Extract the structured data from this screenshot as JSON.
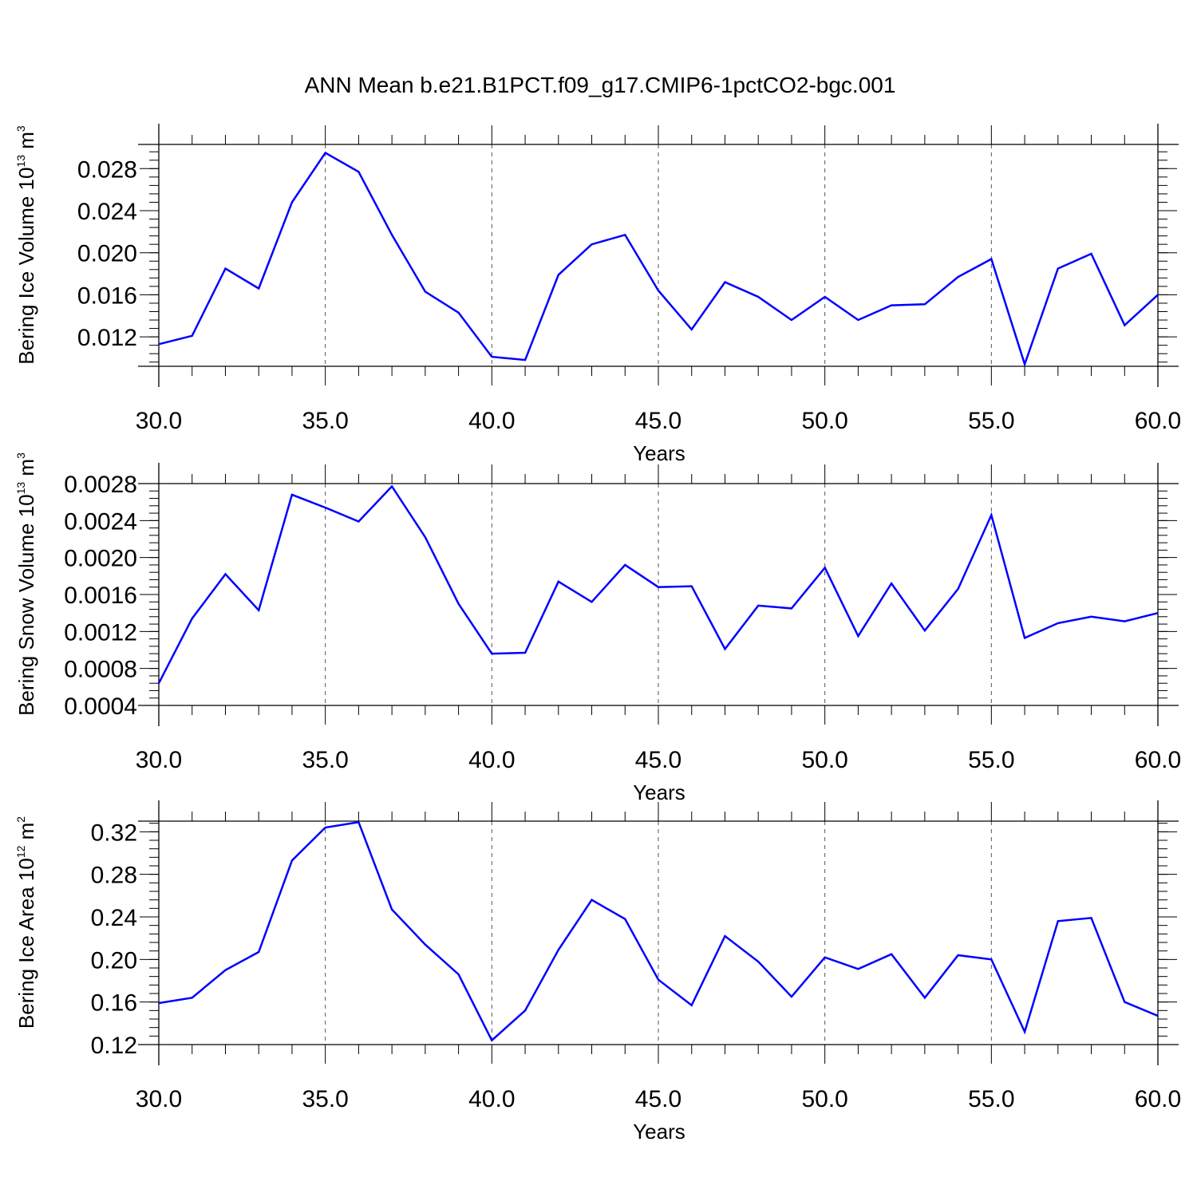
{
  "title": "ANN Mean b.e21.B1PCT.f09_g17.CMIP6-1pctCO2-bgc.001",
  "chart_data": [
    {
      "type": "line",
      "ylabel": "Bering Ice Volume",
      "yunit_base": "10",
      "yunit_exp": "13",
      "yunit_rest": " m",
      "yunit_exp2": "3",
      "xlabel": "Years",
      "xlim": [
        30,
        60
      ],
      "ylim": [
        0.0092,
        0.0303
      ],
      "xticks": [
        30,
        35,
        40,
        45,
        50,
        55,
        60
      ],
      "xtick_labels": [
        "30.0",
        "35.0",
        "40.0",
        "45.0",
        "50.0",
        "55.0",
        "60.0"
      ],
      "yticks": [
        0.012,
        0.016,
        0.02,
        0.024,
        0.028
      ],
      "ytick_labels": [
        "0.012",
        "0.016",
        "0.020",
        "0.024",
        "0.028"
      ],
      "yminor_step": 0.0008,
      "grid": "vertical dashed",
      "line_color": "#0000ff",
      "x": [
        30,
        31,
        32,
        33,
        34,
        35,
        36,
        37,
        38,
        39,
        40,
        41,
        42,
        43,
        44,
        45,
        46,
        47,
        48,
        49,
        50,
        51,
        52,
        53,
        54,
        55,
        56,
        57,
        58,
        59,
        60
      ],
      "values": [
        0.0113,
        0.0121,
        0.0185,
        0.0166,
        0.0248,
        0.0295,
        0.0277,
        0.0217,
        0.0163,
        0.0143,
        0.0101,
        0.0098,
        0.0179,
        0.0208,
        0.0217,
        0.0164,
        0.0127,
        0.0172,
        0.0158,
        0.0136,
        0.0158,
        0.0136,
        0.015,
        0.0151,
        0.0177,
        0.0194,
        0.0094,
        0.0185,
        0.0199,
        0.0131,
        0.016
      ]
    },
    {
      "type": "line",
      "ylabel": "Bering Snow Volume",
      "yunit_base": "10",
      "yunit_exp": "13",
      "yunit_rest": " m",
      "yunit_exp2": "3",
      "xlabel": "Years",
      "xlim": [
        30,
        60
      ],
      "ylim": [
        0.0004,
        0.0028
      ],
      "xticks": [
        30,
        35,
        40,
        45,
        50,
        55,
        60
      ],
      "xtick_labels": [
        "30.0",
        "35.0",
        "40.0",
        "45.0",
        "50.0",
        "55.0",
        "60.0"
      ],
      "yticks": [
        0.0004,
        0.0008,
        0.0012,
        0.0016,
        0.002,
        0.0024,
        0.0028
      ],
      "ytick_labels": [
        "0.0004",
        "0.0008",
        "0.0012",
        "0.0016",
        "0.0020",
        "0.0024",
        "0.0028"
      ],
      "yminor_step": 8e-05,
      "grid": "vertical dashed",
      "line_color": "#0000ff",
      "x": [
        30,
        31,
        32,
        33,
        34,
        35,
        36,
        37,
        38,
        39,
        40,
        41,
        42,
        43,
        44,
        45,
        46,
        47,
        48,
        49,
        50,
        51,
        52,
        53,
        54,
        55,
        56,
        57,
        58,
        59,
        60
      ],
      "values": [
        0.00064,
        0.00134,
        0.00182,
        0.00143,
        0.00268,
        0.00254,
        0.00239,
        0.00277,
        0.00222,
        0.0015,
        0.00096,
        0.00097,
        0.00174,
        0.00152,
        0.00192,
        0.00168,
        0.00169,
        0.00101,
        0.00148,
        0.00145,
        0.00189,
        0.00115,
        0.00172,
        0.00121,
        0.00166,
        0.00246,
        0.00113,
        0.00129,
        0.00136,
        0.00131,
        0.0014
      ]
    },
    {
      "type": "line",
      "ylabel": "Bering Ice Area",
      "yunit_base": "10",
      "yunit_exp": "12",
      "yunit_rest": " m",
      "yunit_exp2": "2",
      "xlabel": "Years",
      "xlim": [
        30,
        60
      ],
      "ylim": [
        0.12,
        0.33
      ],
      "xticks": [
        30,
        35,
        40,
        45,
        50,
        55,
        60
      ],
      "xtick_labels": [
        "30.0",
        "35.0",
        "40.0",
        "45.0",
        "50.0",
        "55.0",
        "60.0"
      ],
      "yticks": [
        0.12,
        0.16,
        0.2,
        0.24,
        0.28,
        0.32
      ],
      "ytick_labels": [
        "0.12",
        "0.16",
        "0.20",
        "0.24",
        "0.28",
        "0.32"
      ],
      "yminor_step": 0.008,
      "grid": "vertical dashed",
      "line_color": "#0000ff",
      "x": [
        30,
        31,
        32,
        33,
        34,
        35,
        36,
        37,
        38,
        39,
        40,
        41,
        42,
        43,
        44,
        45,
        46,
        47,
        48,
        49,
        50,
        51,
        52,
        53,
        54,
        55,
        56,
        57,
        58,
        59,
        60
      ],
      "values": [
        0.159,
        0.164,
        0.19,
        0.207,
        0.293,
        0.324,
        0.329,
        0.247,
        0.214,
        0.186,
        0.124,
        0.152,
        0.209,
        0.256,
        0.238,
        0.181,
        0.157,
        0.222,
        0.198,
        0.165,
        0.202,
        0.191,
        0.205,
        0.164,
        0.204,
        0.2,
        0.132,
        0.236,
        0.239,
        0.16,
        0.147
      ]
    }
  ]
}
